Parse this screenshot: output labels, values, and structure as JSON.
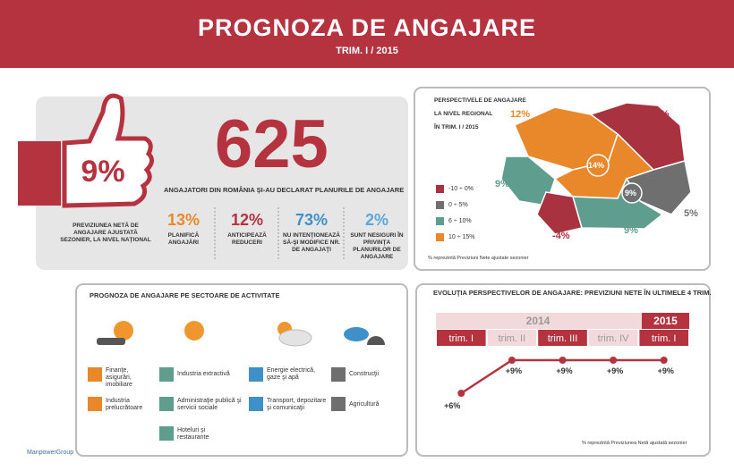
{
  "header": {
    "title": "PROGNOZA DE ANGAJARE",
    "subtitle": "TRIM. I / 2015"
  },
  "national": {
    "value": "9%",
    "caption": "PREVIZIUNEA NETĂ DE ANGAJARE AJUSTATĂ SEZONIER, LA NIVEL NAŢIONAL",
    "employers": "625",
    "employers_caption": "ANGAJATORI DIN ROMÂNIA ŞI-AU DECLARAT PLANURILE DE ANGAJARE",
    "stats": [
      {
        "value": "13%",
        "label": "PLANIFICĂ ANGAJĂRI"
      },
      {
        "value": "12%",
        "label": "ANTICIPEAZĂ REDUCERI"
      },
      {
        "value": "73%",
        "label": "NU INTENŢIONEAZĂ SĂ-ŞI MODIFICE NR. DE ANGAJAŢI"
      },
      {
        "value": "2%",
        "label": "SUNT NESIGURI ÎN PRIVINŢA PLANURILOR DE ANGAJARE"
      }
    ]
  },
  "map": {
    "title": [
      "PERSPECTIVELE DE ANGAJARE",
      "LA NIVEL REGIONAL",
      "ÎN TRIM. I / 2015"
    ],
    "legend": [
      "-10 ÷ 0%",
      "0 ÷ 5%",
      "6 ÷ 10%",
      "10 ÷ 15%"
    ],
    "labels": [
      "12%",
      "-7%",
      "9%",
      "14%",
      "9%",
      "5%",
      "9%",
      "-4%"
    ],
    "note": "% reprezintă Previziuni Nete ajustate sezonier"
  },
  "sectors": {
    "title": "PROGNOZA DE ANGAJARE PE SECTOARE DE ACTIVITATE",
    "items": [
      "Finanţe, asigurări, imobiliare",
      "Industria prelucrătoare",
      "Industria extractivă",
      "Administraţie publică şi servicii sociale",
      "Hoteluri şi restaurante",
      "Energie electrică, gaze şi apă",
      "Transport, depozitare şi comunicaţii",
      "Construcţii",
      "Agricultură"
    ]
  },
  "trend": {
    "title": "EVOLUŢIA PERSPECTIVELOR DE ANGAJARE: PREVIZIUNI NETE ÎN ULTIMELE 4 TRIM.",
    "years": [
      "2014",
      "2015"
    ],
    "quarters": [
      "trim. I",
      "trim. II",
      "trim. III",
      "trim. IV",
      "trim. I"
    ],
    "values": [
      6,
      9,
      9,
      9,
      9
    ],
    "value_labels": [
      "+6%",
      "+9%",
      "+9%",
      "+9%",
      "+9%"
    ],
    "note": "% reprezintă Previziunea Netă ajustată sezonier"
  },
  "footer": {
    "logo": "ManpowerGroup"
  }
}
